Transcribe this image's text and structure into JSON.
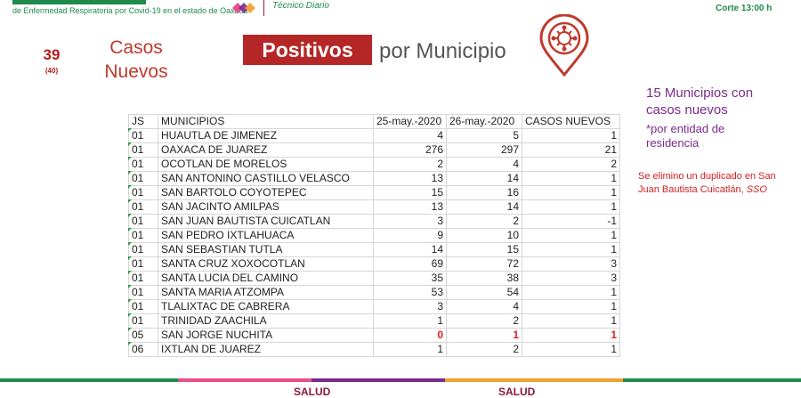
{
  "header": {
    "subtitle": "de Enfermedad Respiratoria por Covid-19 en el estado de Oaxaca",
    "doc_type": "Técnico Diario",
    "cutoff": "Corte 13:00 h"
  },
  "summary": {
    "new_cases": "39",
    "previous": "(40)",
    "label_line1": "Casos",
    "label_line2": "Nuevos"
  },
  "title": {
    "highlight": "Positivos",
    "rest": "por Municipio"
  },
  "side": {
    "municipios_count": "15  Municipios con casos nuevos",
    "note": "*por entidad de residencia",
    "correction_text": "Se elimino un duplicado en San Juan Bautista Cuicatlán,",
    "correction_source": "SSO"
  },
  "table": {
    "headers": {
      "js": "JS",
      "municipio": "MUNICIPIOS",
      "d1": "25-may.-2020",
      "d2": "26-may.-2020",
      "new": "CASOS NUEVOS"
    },
    "rows": [
      {
        "js": "01",
        "municipio": "HUAUTLA DE JIMENEZ",
        "d1": "4",
        "d2": "5",
        "new": "1"
      },
      {
        "js": "01",
        "municipio": "OAXACA DE JUAREZ",
        "d1": "276",
        "d2": "297",
        "new": "21"
      },
      {
        "js": "01",
        "municipio": "OCOTLAN DE MORELOS",
        "d1": "2",
        "d2": "4",
        "new": "2"
      },
      {
        "js": "01",
        "municipio": "SAN ANTONINO CASTILLO VELASCO",
        "d1": "13",
        "d2": "14",
        "new": "1"
      },
      {
        "js": "01",
        "municipio": "SAN BARTOLO COYOTEPEC",
        "d1": "15",
        "d2": "16",
        "new": "1"
      },
      {
        "js": "01",
        "municipio": "SAN JACINTO AMILPAS",
        "d1": "13",
        "d2": "14",
        "new": "1"
      },
      {
        "js": "01",
        "municipio": "SAN JUAN BAUTISTA CUICATLAN",
        "d1": "3",
        "d2": "2",
        "new": "-1"
      },
      {
        "js": "01",
        "municipio": "SAN PEDRO IXTLAHUACA",
        "d1": "9",
        "d2": "10",
        "new": "1"
      },
      {
        "js": "01",
        "municipio": "SAN SEBASTIAN TUTLA",
        "d1": "14",
        "d2": "15",
        "new": "1"
      },
      {
        "js": "01",
        "municipio": "SANTA CRUZ XOXOCOTLAN",
        "d1": "69",
        "d2": "72",
        "new": "3"
      },
      {
        "js": "01",
        "municipio": "SANTA LUCIA DEL CAMINO",
        "d1": "35",
        "d2": "38",
        "new": "3"
      },
      {
        "js": "01",
        "municipio": "SANTA MARIA ATZOMPA",
        "d1": "53",
        "d2": "54",
        "new": "1"
      },
      {
        "js": "01",
        "municipio": "TLALIXTAC DE CABRERA",
        "d1": "3",
        "d2": "4",
        "new": "1"
      },
      {
        "js": "01",
        "municipio": "TRINIDAD ZAACHILA",
        "d1": "1",
        "d2": "2",
        "new": "1"
      },
      {
        "js": "05",
        "municipio": "SAN JORGE NUCHITA",
        "d1": "0",
        "d2": "1",
        "new": "1",
        "highlight": true
      },
      {
        "js": "06",
        "municipio": "IXTLAN DE JUAREZ",
        "d1": "1",
        "d2": "2",
        "new": "1"
      }
    ]
  },
  "footer": {
    "logo1": "SALUD",
    "logo2": "SALUD"
  },
  "colors": {
    "brand_green": "#1f8a4c",
    "title_red": "#b52727",
    "accent_purple": "#7b2a8c",
    "alert_red": "#e02020"
  }
}
